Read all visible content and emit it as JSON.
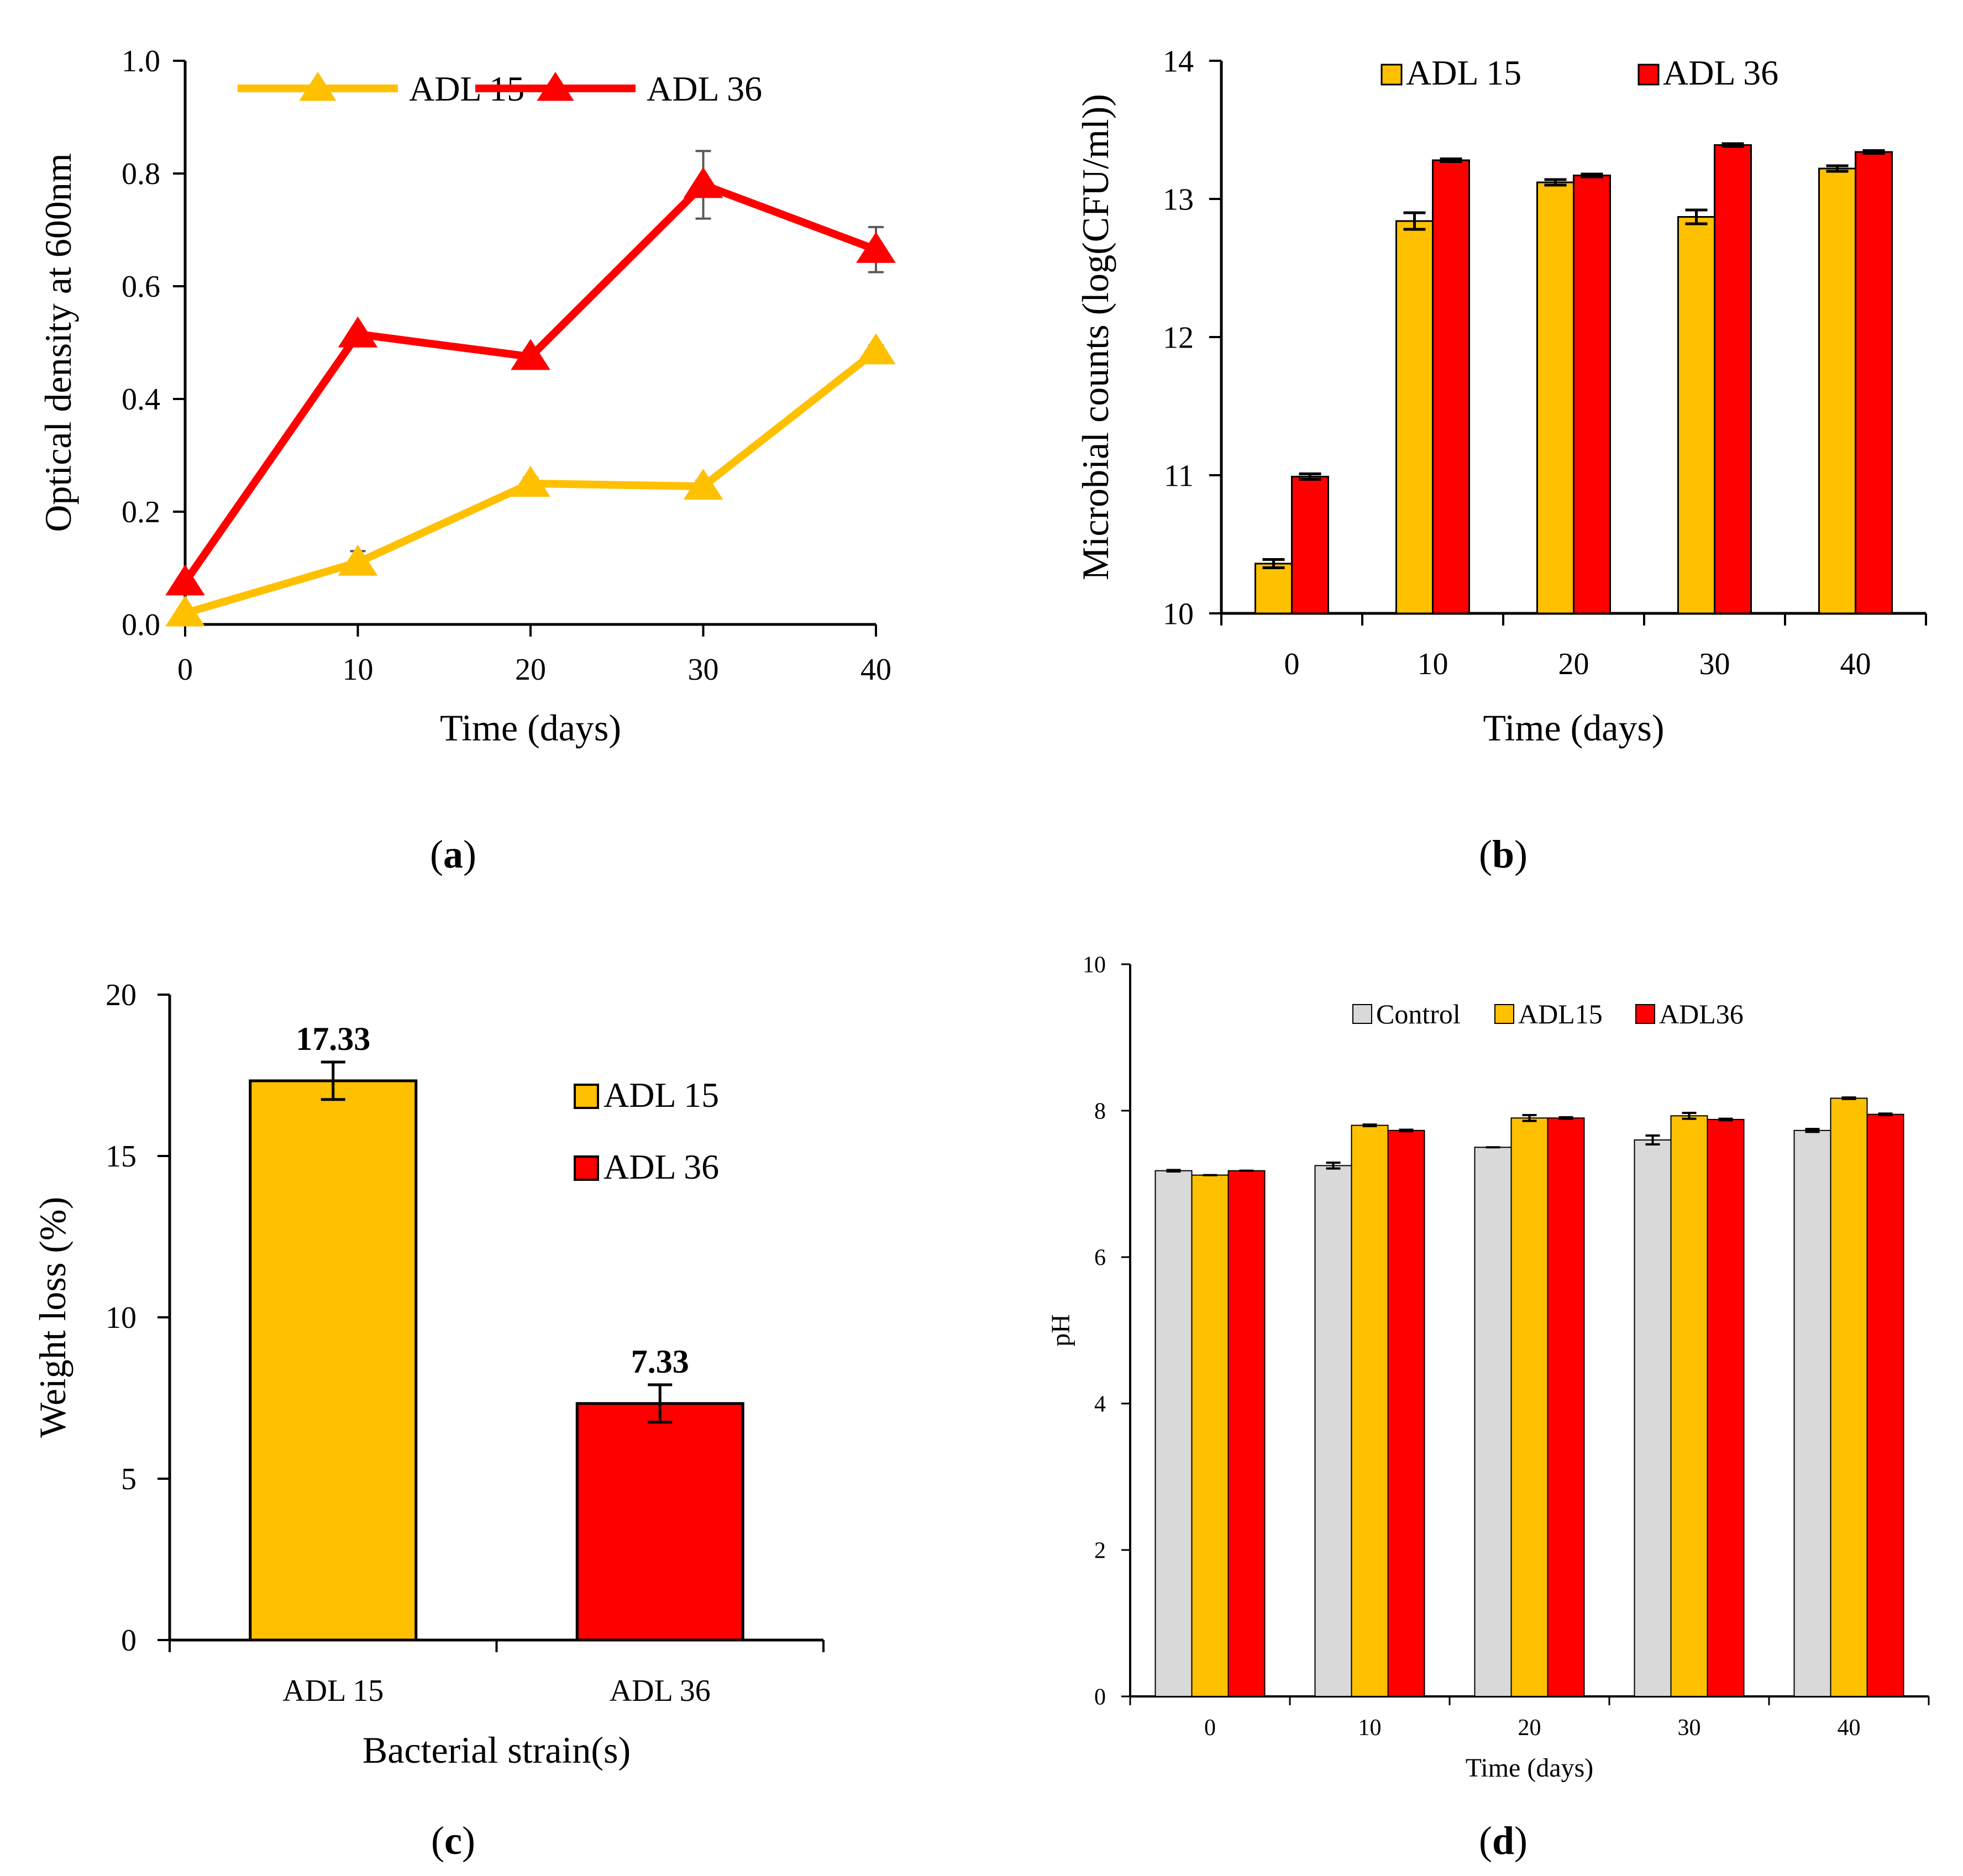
{
  "colors": {
    "adl15": "#ffc000",
    "adl15_line": "#ffc000",
    "adl36": "#ff0000",
    "control": "#d9d9d9",
    "axis": "#000000",
    "errorbar_a": "#595959",
    "errorbar": "#000000"
  },
  "captions": {
    "a": "a",
    "b": "b",
    "c": "c",
    "d": "d"
  },
  "chart_data": [
    {
      "id": "a",
      "type": "line",
      "title": "",
      "xlabel": "Time (days)",
      "ylabel": "Optical density at 600nm",
      "x": [
        0,
        10,
        20,
        30,
        40
      ],
      "xticks": [
        "0",
        "10",
        "20",
        "30",
        "40"
      ],
      "ylim": [
        0,
        1.0
      ],
      "yticks": [
        "0.0",
        "0.2",
        "0.4",
        "0.6",
        "0.8",
        "1.0"
      ],
      "legend_position": "top",
      "series": [
        {
          "name": "ADL 15",
          "values": [
            0.02,
            0.11,
            0.25,
            0.245,
            0.485
          ],
          "errors": [
            0.005,
            0.02,
            0.01,
            0.01,
            0.01
          ]
        },
        {
          "name": "ADL 36",
          "values": [
            0.075,
            0.515,
            0.475,
            0.78,
            0.665
          ],
          "errors": [
            0.005,
            0.005,
            0.01,
            0.06,
            0.04
          ]
        }
      ]
    },
    {
      "id": "b",
      "type": "bar",
      "title": "",
      "xlabel": "Time (days)",
      "ylabel": "Microbial counts (log(CFU/ml))",
      "categories": [
        "0",
        "10",
        "20",
        "30",
        "40"
      ],
      "ylim": [
        10,
        14
      ],
      "yticks": [
        "10",
        "11",
        "12",
        "13",
        "14"
      ],
      "legend_position": "top",
      "series": [
        {
          "name": "ADL 15",
          "values": [
            10.36,
            12.84,
            13.12,
            12.87,
            13.22
          ],
          "errors": [
            0.03,
            0.06,
            0.02,
            0.05,
            0.02
          ]
        },
        {
          "name": "ADL 36",
          "values": [
            10.99,
            13.28,
            13.17,
            13.39,
            13.34
          ],
          "errors": [
            0.02,
            0.01,
            0.01,
            0.01,
            0.01
          ]
        }
      ]
    },
    {
      "id": "c",
      "type": "bar",
      "title": "",
      "xlabel": "Bacterial strain(s)",
      "ylabel": "Weight loss (%)",
      "categories": [
        "ADL 15",
        "ADL 36"
      ],
      "values": [
        17.33,
        7.33
      ],
      "errors": [
        0.58,
        0.58
      ],
      "data_labels": [
        "17.33",
        "7.33"
      ],
      "ylim": [
        0,
        20
      ],
      "yticks": [
        "0",
        "5",
        "10",
        "15",
        "20"
      ],
      "legend": [
        "ADL 15",
        "ADL 36"
      ],
      "legend_position": "right"
    },
    {
      "id": "d",
      "type": "bar",
      "title": "",
      "xlabel": "Time (days)",
      "ylabel": "pH",
      "categories": [
        "0",
        "10",
        "20",
        "30",
        "40"
      ],
      "ylim": [
        0,
        10
      ],
      "yticks": [
        "0",
        "2",
        "4",
        "6",
        "8",
        "10"
      ],
      "legend_position": "top",
      "series": [
        {
          "name": "Control",
          "values": [
            7.18,
            7.25,
            7.5,
            7.6,
            7.73
          ],
          "errors": [
            0.01,
            0.04,
            0.0,
            0.06,
            0.02
          ]
        },
        {
          "name": "ADL15",
          "values": [
            7.12,
            7.8,
            7.9,
            7.93,
            8.17
          ],
          "errors": [
            0.0,
            0.01,
            0.04,
            0.04,
            0.01
          ]
        },
        {
          "name": "ADL36",
          "values": [
            7.18,
            7.73,
            7.9,
            7.88,
            7.95
          ],
          "errors": [
            0.0,
            0.01,
            0.01,
            0.01,
            0.01
          ]
        }
      ]
    }
  ]
}
